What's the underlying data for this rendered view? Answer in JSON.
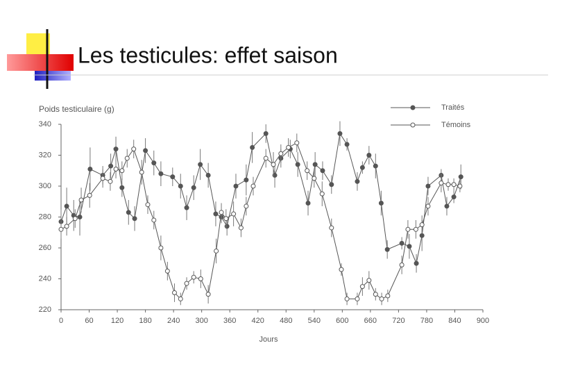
{
  "header": {
    "title": "Les testicules: effet saison"
  },
  "chart_data": {
    "type": "line",
    "y_label": "Poids testiculaire (g)",
    "x_label": "Jours",
    "xlim": [
      0,
      900
    ],
    "xticks": [
      0,
      60,
      120,
      180,
      240,
      300,
      360,
      420,
      480,
      540,
      600,
      660,
      720,
      780,
      840,
      900
    ],
    "ylim": [
      220,
      340
    ],
    "yticks": [
      220,
      240,
      260,
      280,
      300,
      320,
      340
    ],
    "grid": false,
    "legend": "upper right",
    "series": [
      {
        "name": "Traités",
        "color": "#555555",
        "marker_fill": "#555555",
        "x": [
          0,
          12,
          27,
          40,
          62,
          89,
          106,
          117,
          130,
          144,
          157,
          180,
          198,
          213,
          238,
          255,
          268,
          283,
          297,
          314,
          330,
          342,
          354,
          373,
          395,
          408,
          437,
          456,
          469,
          489,
          505,
          527,
          542,
          558,
          577,
          595,
          610,
          632,
          643,
          657,
          671,
          683,
          696,
          727,
          743,
          758,
          770,
          783,
          811,
          823,
          838,
          853
        ],
        "values": [
          277,
          287,
          281,
          280,
          311,
          307,
          313,
          324,
          299,
          283,
          279,
          323,
          315,
          308,
          306,
          300,
          286,
          299,
          314,
          307,
          282,
          280,
          274,
          300,
          304,
          325,
          334,
          307,
          318,
          324,
          314,
          289,
          314,
          310,
          301,
          334,
          327,
          303,
          312,
          320,
          313,
          289,
          259,
          263,
          261,
          250,
          268,
          300,
          307,
          287,
          293,
          306
        ],
        "errors": [
          8,
          12,
          10,
          12,
          14,
          6,
          8,
          8,
          6,
          8,
          8,
          8,
          8,
          8,
          6,
          8,
          8,
          8,
          10,
          8,
          8,
          4,
          6,
          8,
          10,
          10,
          6,
          8,
          6,
          6,
          8,
          8,
          8,
          6,
          6,
          8,
          4,
          6,
          4,
          6,
          8,
          8,
          6,
          4,
          8,
          6,
          10,
          6,
          4,
          6,
          4,
          8
        ]
      },
      {
        "name": "Témoins",
        "color": "#555555",
        "marker_fill": "#ffffff",
        "x": [
          0,
          12,
          30,
          43,
          61,
          89,
          105,
          117,
          130,
          141,
          155,
          172,
          185,
          198,
          213,
          227,
          242,
          255,
          268,
          283,
          298,
          314,
          331,
          342,
          352,
          368,
          384,
          395,
          410,
          437,
          453,
          469,
          485,
          503,
          525,
          540,
          557,
          577,
          598,
          610,
          632,
          643,
          657,
          671,
          684,
          697,
          727,
          740,
          757,
          770,
          783,
          811,
          826,
          838,
          851
        ],
        "values": [
          272,
          274,
          279,
          291,
          294,
          305,
          303,
          311,
          310,
          318,
          324,
          309,
          288,
          278,
          260,
          245,
          231,
          227,
          237,
          241,
          240,
          230,
          258,
          283,
          279,
          282,
          273,
          287,
          300,
          318,
          314,
          321,
          325,
          328,
          310,
          305,
          295,
          273,
          246,
          227,
          227,
          235,
          239,
          230,
          227,
          229,
          249,
          272,
          272,
          275,
          287,
          302,
          301,
          301,
          300
        ],
        "errors": [
          6,
          6,
          6,
          8,
          8,
          6,
          6,
          6,
          6,
          6,
          6,
          8,
          6,
          6,
          8,
          6,
          6,
          4,
          4,
          4,
          6,
          6,
          8,
          6,
          6,
          8,
          6,
          6,
          6,
          6,
          8,
          6,
          6,
          6,
          6,
          6,
          8,
          6,
          4,
          4,
          4,
          6,
          6,
          4,
          4,
          4,
          6,
          6,
          6,
          6,
          6,
          6,
          4,
          4,
          4
        ]
      }
    ]
  }
}
